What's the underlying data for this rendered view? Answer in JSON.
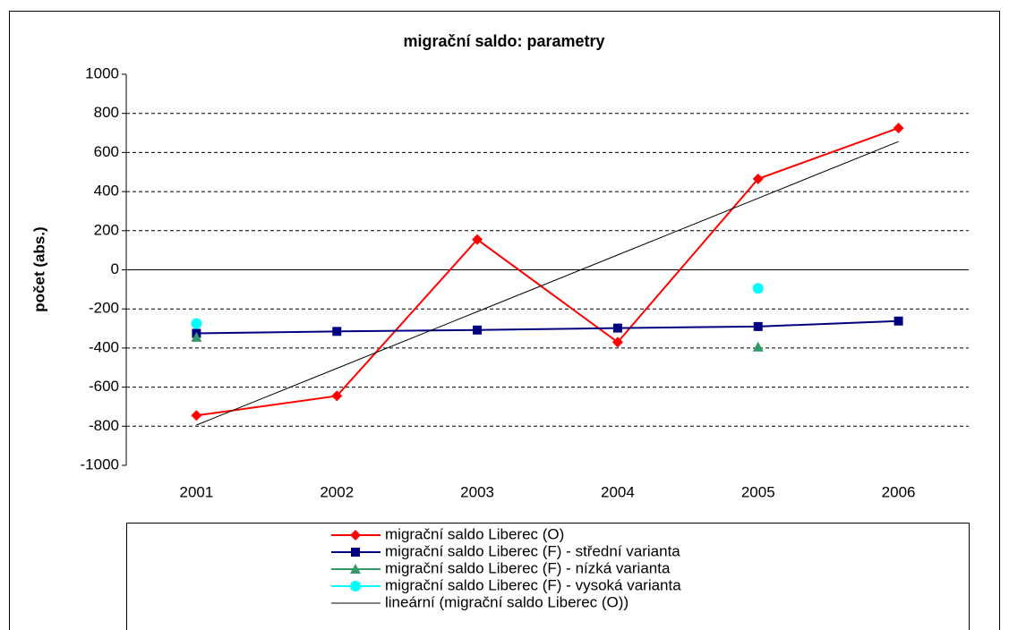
{
  "chart_data": {
    "type": "line",
    "title": "migrační saldo: parametry",
    "ylabel": "počet (abs.)",
    "categories": [
      "2001",
      "2002",
      "2003",
      "2004",
      "2005",
      "2006"
    ],
    "series": [
      {
        "name": "migrační saldo Liberec (O)",
        "color": "#ff0000",
        "marker": "diamond",
        "values": [
          -745,
          -645,
          155,
          -370,
          465,
          725
        ]
      },
      {
        "name": "migrační saldo Liberec (F) - střední varianta",
        "color": "#000080",
        "marker": "square",
        "values": [
          -325,
          -315,
          -308,
          -298,
          -290,
          -262
        ]
      },
      {
        "name": "migrační saldo Liberec (F) - nízká varianta",
        "color": "#339966",
        "marker": "triangle",
        "values": [
          -345,
          null,
          null,
          null,
          -395,
          null
        ]
      },
      {
        "name": "migrační saldo Liberec (F) - vysoká varianta",
        "color": "#00ffff",
        "marker": "circle",
        "values": [
          -275,
          null,
          null,
          null,
          -95,
          null
        ]
      },
      {
        "name": "lineární (migrační saldo Liberec (O))",
        "color": "#000000",
        "marker": "none",
        "values": [
          -794,
          -504,
          -214,
          76,
          366,
          656
        ]
      }
    ],
    "ylim": [
      -1000,
      1000
    ],
    "yticks": [
      -1000,
      -800,
      -600,
      -400,
      -200,
      0,
      200,
      400,
      600,
      800,
      1000
    ],
    "grid": true,
    "legend": "bottom"
  }
}
